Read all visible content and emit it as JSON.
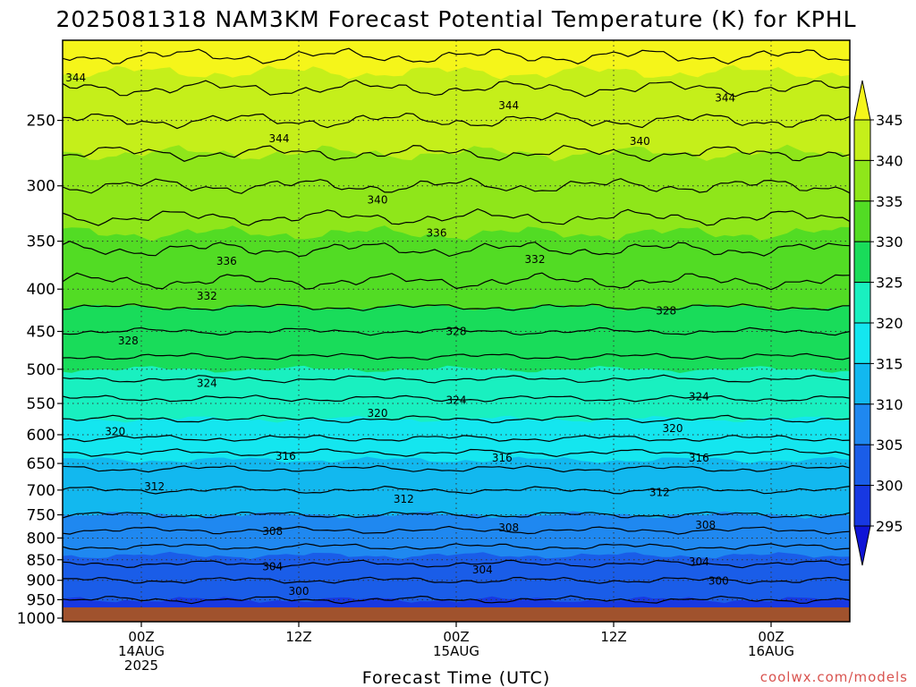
{
  "chart_data": {
    "type": "contour",
    "title": "2025081318 NAM3KM Forecast Potential Temperature (K) for KPHL",
    "xlabel": "Forecast Time (UTC)",
    "ylabel": "",
    "credit": "coolwx.com/models",
    "x_ticks": [
      {
        "hours": 6,
        "lines": [
          "00Z",
          "14AUG",
          "2025"
        ]
      },
      {
        "hours": 18,
        "lines": [
          "12Z"
        ]
      },
      {
        "hours": 30,
        "lines": [
          "00Z",
          "15AUG"
        ]
      },
      {
        "hours": 42,
        "lines": [
          "12Z"
        ]
      },
      {
        "hours": 54,
        "lines": [
          "00Z",
          "16AUG"
        ]
      }
    ],
    "xlim_hours": [
      0,
      60
    ],
    "y_ticks": [
      250,
      300,
      350,
      400,
      450,
      500,
      550,
      600,
      650,
      700,
      750,
      800,
      850,
      900,
      950,
      1000
    ],
    "ylim_hpa": [
      200,
      1010
    ],
    "y_scale": "log",
    "colorbar": {
      "labels": [
        "345",
        "340",
        "335",
        "330",
        "325",
        "320",
        "315",
        "310",
        "305",
        "300",
        "295"
      ],
      "colors": [
        "#f5f51a",
        "#c5ef1a",
        "#8fe61a",
        "#52dc24",
        "#19dc5a",
        "#19f0c0",
        "#14e6ef",
        "#12b8ef",
        "#1f88f0",
        "#1a5de8",
        "#1738e2",
        "#0f14d6"
      ]
    },
    "contour_levels": [
      300,
      304,
      308,
      312,
      316,
      320,
      324,
      328,
      332,
      336,
      340,
      344
    ],
    "contour_labels": [
      {
        "text": "344",
        "hours": 1.0,
        "hpa": 222
      },
      {
        "text": "344",
        "hours": 16.5,
        "hpa": 263
      },
      {
        "text": "344",
        "hours": 34.0,
        "hpa": 240
      },
      {
        "text": "344",
        "hours": 50.5,
        "hpa": 235
      },
      {
        "text": "340",
        "hours": 24.0,
        "hpa": 312
      },
      {
        "text": "340",
        "hours": 44.0,
        "hpa": 265
      },
      {
        "text": "336",
        "hours": 12.5,
        "hpa": 370
      },
      {
        "text": "336",
        "hours": 28.5,
        "hpa": 342
      },
      {
        "text": "332",
        "hours": 11.0,
        "hpa": 408
      },
      {
        "text": "332",
        "hours": 36.0,
        "hpa": 368
      },
      {
        "text": "328",
        "hours": 5.0,
        "hpa": 462
      },
      {
        "text": "328",
        "hours": 30.0,
        "hpa": 450
      },
      {
        "text": "328",
        "hours": 46.0,
        "hpa": 425
      },
      {
        "text": "324",
        "hours": 11.0,
        "hpa": 520
      },
      {
        "text": "324",
        "hours": 30.0,
        "hpa": 545
      },
      {
        "text": "324",
        "hours": 48.5,
        "hpa": 540
      },
      {
        "text": "320",
        "hours": 4.0,
        "hpa": 595
      },
      {
        "text": "320",
        "hours": 24.0,
        "hpa": 565
      },
      {
        "text": "320",
        "hours": 46.5,
        "hpa": 590
      },
      {
        "text": "316",
        "hours": 17.0,
        "hpa": 637
      },
      {
        "text": "316",
        "hours": 33.5,
        "hpa": 640
      },
      {
        "text": "316",
        "hours": 48.5,
        "hpa": 640
      },
      {
        "text": "312",
        "hours": 7.0,
        "hpa": 693
      },
      {
        "text": "312",
        "hours": 26.0,
        "hpa": 718
      },
      {
        "text": "312",
        "hours": 45.5,
        "hpa": 705
      },
      {
        "text": "308",
        "hours": 16.0,
        "hpa": 785
      },
      {
        "text": "308",
        "hours": 34.0,
        "hpa": 778
      },
      {
        "text": "308",
        "hours": 49.0,
        "hpa": 772
      },
      {
        "text": "304",
        "hours": 16.0,
        "hpa": 867
      },
      {
        "text": "304",
        "hours": 32.0,
        "hpa": 874
      },
      {
        "text": "304",
        "hours": 48.5,
        "hpa": 855
      },
      {
        "text": "300",
        "hours": 18.0,
        "hpa": 928
      },
      {
        "text": "300",
        "hours": 50.0,
        "hpa": 902
      }
    ],
    "theta_profile_k": [
      {
        "hpa": 1010,
        "k": 297
      },
      {
        "hpa": 950,
        "k": 300
      },
      {
        "hpa": 900,
        "k": 302
      },
      {
        "hpa": 850,
        "k": 304.5
      },
      {
        "hpa": 800,
        "k": 307
      },
      {
        "hpa": 750,
        "k": 310
      },
      {
        "hpa": 700,
        "k": 312
      },
      {
        "hpa": 650,
        "k": 314.5
      },
      {
        "hpa": 600,
        "k": 318.5
      },
      {
        "hpa": 550,
        "k": 321.5
      },
      {
        "hpa": 500,
        "k": 325
      },
      {
        "hpa": 450,
        "k": 328
      },
      {
        "hpa": 400,
        "k": 331.5
      },
      {
        "hpa": 350,
        "k": 334.5
      },
      {
        "hpa": 300,
        "k": 338
      },
      {
        "hpa": 250,
        "k": 342
      },
      {
        "hpa": 200,
        "k": 347
      }
    ]
  }
}
